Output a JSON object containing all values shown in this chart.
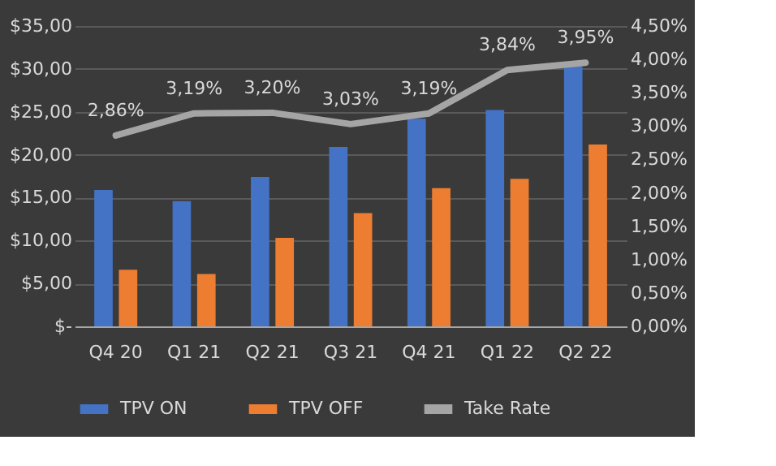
{
  "chart_data": {
    "type": "bar",
    "categories": [
      "Q4 20",
      "Q1 21",
      "Q2 21",
      "Q3 21",
      "Q4 21",
      "Q1 22",
      "Q2 22"
    ],
    "series": [
      {
        "name": "TPV ON",
        "color": "#4472c4",
        "values": [
          15.9,
          14.6,
          17.4,
          20.9,
          24.2,
          25.2,
          30.3
        ]
      },
      {
        "name": "TPV OFF",
        "color": "#ed7d31",
        "values": [
          6.6,
          6.1,
          10.3,
          13.2,
          16.1,
          17.2,
          21.2
        ]
      },
      {
        "name": "Take Rate",
        "type": "line",
        "axis": "y2",
        "color": "#a5a5a5",
        "values": [
          2.86,
          3.19,
          3.2,
          3.03,
          3.19,
          3.84,
          3.95
        ],
        "value_labels": [
          "2,86%",
          "3,19%",
          "3,20%",
          "3,03%",
          "3,19%",
          "3,84%",
          "3,95%"
        ]
      }
    ],
    "ylim": [
      0,
      35
    ],
    "yticks": [
      {
        "value": 0,
        "label": "$-"
      },
      {
        "value": 5,
        "label": "$5,00"
      },
      {
        "value": 10,
        "label": "$10,00"
      },
      {
        "value": 15,
        "label": "$15,00"
      },
      {
        "value": 20,
        "label": "$20,00"
      },
      {
        "value": 25,
        "label": "$25,00"
      },
      {
        "value": 30,
        "label": "$30,00"
      },
      {
        "value": 35,
        "label": "$35,00"
      }
    ],
    "y2lim": [
      0,
      4.5
    ],
    "y2ticks": [
      {
        "value": 0,
        "label": "0,00%"
      },
      {
        "value": 0.5,
        "label": "0,50%"
      },
      {
        "value": 1,
        "label": "1,00%"
      },
      {
        "value": 1.5,
        "label": "1,50%"
      },
      {
        "value": 2,
        "label": "2,00%"
      },
      {
        "value": 2.5,
        "label": "2,50%"
      },
      {
        "value": 3,
        "label": "3,00%"
      },
      {
        "value": 3.5,
        "label": "3,50%"
      },
      {
        "value": 4,
        "label": "4,00%"
      },
      {
        "value": 4.5,
        "label": "4,50%"
      }
    ],
    "grid": "y",
    "legend": "bottom",
    "marker": "none",
    "line_style": "solid"
  }
}
